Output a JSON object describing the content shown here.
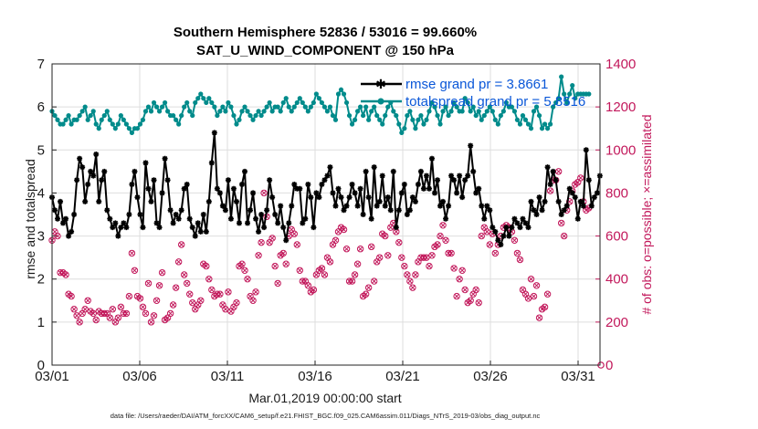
{
  "chart_data": {
    "type": "line",
    "title_line1": "Southern Hemisphere 52836 / 53016 = 99.660%",
    "title_line2": "SAT_U_WIND_COMPONENT @ 150 hPa",
    "xlabel": "Mar.01,2019 00:00:00 start",
    "ylabel_left": "rmse and totalspread",
    "ylabel_right": "# of obs: o=possible; ×=assimilated",
    "footer": "data file: /Users/raeder/DAI/ATM_forcXX/CAM6_setup/f.e21.FHIST_BGC.f09_025.CAM6assim.011/Diags_NTrS_2019-03/obs_diag_output.nc",
    "x_tick_labels": [
      "03/01",
      "03/06",
      "03/11",
      "03/16",
      "03/21",
      "03/26",
      "03/31"
    ],
    "x_tick_days": [
      0,
      5,
      10,
      15,
      20,
      25,
      30
    ],
    "xlim_days": [
      0,
      31.25
    ],
    "ylim_left": [
      0,
      7
    ],
    "yticks_left": [
      0,
      1,
      2,
      3,
      4,
      5,
      6,
      7
    ],
    "ylim_right": [
      0,
      1400
    ],
    "yticks_right": [
      0,
      200,
      400,
      600,
      800,
      1000,
      1200,
      1400
    ],
    "grid": true,
    "legend_position": "top-right",
    "colors": {
      "rmse": "#000000",
      "spread": "#008b8b",
      "obs": "#c2185b",
      "legend_text": "#0a57d8"
    },
    "series": [
      {
        "name": "rmse grand pr = 3.8661",
        "axis": "left",
        "values": [
          3.9,
          3.6,
          3.4,
          3.8,
          3.3,
          3.4,
          3.0,
          3.1,
          3.5,
          4.3,
          4.8,
          4.6,
          3.8,
          4.2,
          4.5,
          4.4,
          4.9,
          3.8,
          4.3,
          4.5,
          3.6,
          3.4,
          3.2,
          3.3,
          3.0,
          3.2,
          3.3,
          3.2,
          3.5,
          4.2,
          4.5,
          3.9,
          3.5,
          3.2,
          4.7,
          4.1,
          3.8,
          4.3,
          3.3,
          3.2,
          4.0,
          4.8,
          4.3,
          3.6,
          3.3,
          3.5,
          3.4,
          3.6,
          4.1,
          4.2,
          3.4,
          3.2,
          3.0,
          3.3,
          3.1,
          3.5,
          3.1,
          3.8,
          4.7,
          5.4,
          4.1,
          4.0,
          3.7,
          3.6,
          4.3,
          3.4,
          4.1,
          3.8,
          3.3,
          4.2,
          4.5,
          3.3,
          3.6,
          4.0,
          3.4,
          3.1,
          3.5,
          3.2,
          3.6,
          4.3,
          3.9,
          3.5,
          3.3,
          3.7,
          3.2,
          2.9,
          3.3,
          3.7,
          4.2,
          4.1,
          4.1,
          3.3,
          3.4,
          4.2,
          3.9,
          3.2,
          4.0,
          3.9,
          4.2,
          4.3,
          4.4,
          4.6,
          4.0,
          3.7,
          4.1,
          3.9,
          3.6,
          3.7,
          3.9,
          4.2,
          4.0,
          3.7,
          4.1,
          3.5,
          4.5,
          3.9,
          3.4,
          4.6,
          3.7,
          3.8,
          4.4,
          3.7,
          3.9,
          3.6,
          4.5,
          3.2,
          3.6,
          4.0,
          4.2,
          3.5,
          3.6,
          3.9,
          3.8,
          4.2,
          4.5,
          4.1,
          4.4,
          4.1,
          4.8,
          4.0,
          4.3,
          3.7,
          3.8,
          3.4,
          3.7,
          4.4,
          4.3,
          4.0,
          4.4,
          3.9,
          4.3,
          4.4,
          5.1,
          4.5,
          4.0,
          4.1,
          3.7,
          3.4,
          3.7,
          3.6,
          3.2,
          3.1,
          2.9,
          2.8,
          3.0,
          3.2,
          3.0,
          3.2,
          3.4,
          3.3,
          3.2,
          3.4,
          3.3,
          3.2,
          3.8,
          3.6,
          3.5,
          3.9,
          3.6,
          3.8,
          4.6,
          4.2,
          4.5,
          4.3,
          3.8,
          3.5,
          3.6,
          3.7,
          4.1,
          4.0,
          3.9,
          3.4,
          3.8,
          3.7,
          5.0,
          4.3,
          3.7,
          3.9,
          4.0,
          4.4
        ],
        "day_start": 0.0,
        "day_step": 0.157
      },
      {
        "name": "totalspread grand pr = 5.8516",
        "axis": "left",
        "values": [
          5.9,
          5.8,
          5.7,
          5.6,
          5.6,
          5.7,
          5.8,
          5.6,
          5.7,
          5.7,
          5.8,
          5.9,
          6.0,
          5.7,
          5.8,
          5.9,
          5.6,
          5.5,
          5.7,
          5.8,
          5.9,
          5.7,
          5.6,
          5.5,
          5.6,
          5.8,
          5.7,
          5.6,
          5.5,
          5.4,
          5.5,
          5.5,
          5.6,
          5.7,
          5.9,
          6.0,
          5.9,
          6.1,
          6.0,
          5.9,
          6.0,
          6.1,
          5.9,
          5.8,
          5.8,
          5.7,
          5.6,
          5.8,
          6.0,
          6.1,
          5.9,
          5.8,
          6.1,
          6.2,
          6.3,
          6.2,
          6.1,
          6.2,
          6.1,
          6.0,
          5.8,
          5.9,
          6.0,
          5.9,
          6.1,
          6.0,
          5.8,
          5.6,
          5.7,
          5.9,
          6.0,
          5.9,
          5.8,
          5.7,
          5.8,
          5.9,
          5.8,
          5.9,
          6.0,
          6.1,
          5.9,
          6.0,
          6.0,
          5.9,
          6.1,
          6.2,
          6.0,
          5.9,
          6.0,
          6.1,
          6.2,
          6.1,
          6.0,
          5.9,
          6.0,
          6.1,
          6.3,
          6.2,
          6.1,
          6.0,
          5.9,
          6.0,
          5.8,
          5.7,
          6.3,
          6.4,
          6.3,
          6.1,
          5.8,
          5.6,
          5.7,
          5.9,
          6.0,
          5.8,
          6.0,
          5.7,
          5.9,
          6.0,
          5.8,
          5.7,
          5.6,
          5.8,
          6.0,
          6.1,
          5.9,
          5.8,
          5.6,
          5.4,
          5.5,
          5.8,
          5.9,
          5.7,
          5.5,
          5.7,
          5.8,
          5.6,
          5.7,
          5.9,
          6.1,
          6.0,
          5.8,
          5.6,
          5.9,
          6.0,
          5.8,
          5.9,
          6.1,
          6.0,
          5.9,
          5.9,
          6.2,
          6.1,
          5.9,
          6.0,
          5.8,
          5.9,
          5.7,
          5.8,
          5.9,
          6.0,
          5.9,
          5.7,
          5.6,
          5.8,
          5.9,
          6.1,
          6.0,
          6.0,
          5.9,
          5.7,
          5.6,
          5.8,
          5.7,
          5.6,
          5.5,
          5.9,
          6.0,
          5.8,
          5.5,
          5.6,
          5.5,
          5.6,
          6.0,
          6.1,
          6.2,
          6.7,
          6.3,
          6.1,
          6.3,
          6.5,
          6.2,
          6.3,
          6.3,
          6.3,
          6.3,
          6.3
        ],
        "day_start": 0.0,
        "day_step": 0.157
      },
      {
        "name": "assimilated obs",
        "axis": "right",
        "values": [
          580,
          620,
          600,
          430,
          430,
          420,
          330,
          320,
          260,
          230,
          200,
          240,
          260,
          300,
          250,
          240,
          210,
          250,
          240,
          240,
          240,
          220,
          260,
          200,
          220,
          270,
          240,
          240,
          320,
          520,
          440,
          320,
          310,
          270,
          240,
          380,
          200,
          230,
          300,
          370,
          430,
          210,
          220,
          240,
          280,
          360,
          480,
          560,
          420,
          380,
          330,
          290,
          260,
          280,
          300,
          470,
          460,
          400,
          350,
          320,
          330,
          330,
          280,
          260,
          340,
          250,
          270,
          290,
          460,
          470,
          440,
          400,
          320,
          300,
          340,
          510,
          570,
          800,
          690,
          570,
          590,
          460,
          380,
          510,
          520,
          470,
          600,
          630,
          610,
          560,
          440,
          390,
          390,
          370,
          340,
          350,
          420,
          440,
          450,
          420,
          500,
          480,
          560,
          580,
          620,
          640,
          630,
          540,
          390,
          390,
          420,
          470,
          540,
          320,
          330,
          360,
          550,
          390,
          480,
          500,
          610,
          600,
          510,
          640,
          660,
          620,
          570,
          500,
          460,
          420,
          390,
          360,
          420,
          480,
          500,
          500,
          500,
          460,
          510,
          550,
          560,
          600,
          650,
          580,
          520,
          520,
          450,
          320,
          400,
          440,
          350,
          290,
          300,
          330,
          350,
          290,
          600,
          640,
          620,
          560,
          610,
          520,
          560,
          600,
          640,
          650,
          640,
          620,
          580,
          520,
          490,
          350,
          330,
          310,
          400,
          320,
          370,
          220,
          260,
          270,
          330,
          810,
          860,
          860,
          900,
          660,
          600,
          720,
          760,
          810,
          840,
          850,
          870,
          760,
          720,
          730
        ],
        "day_start": 0.0,
        "day_step": 0.157
      }
    ]
  }
}
